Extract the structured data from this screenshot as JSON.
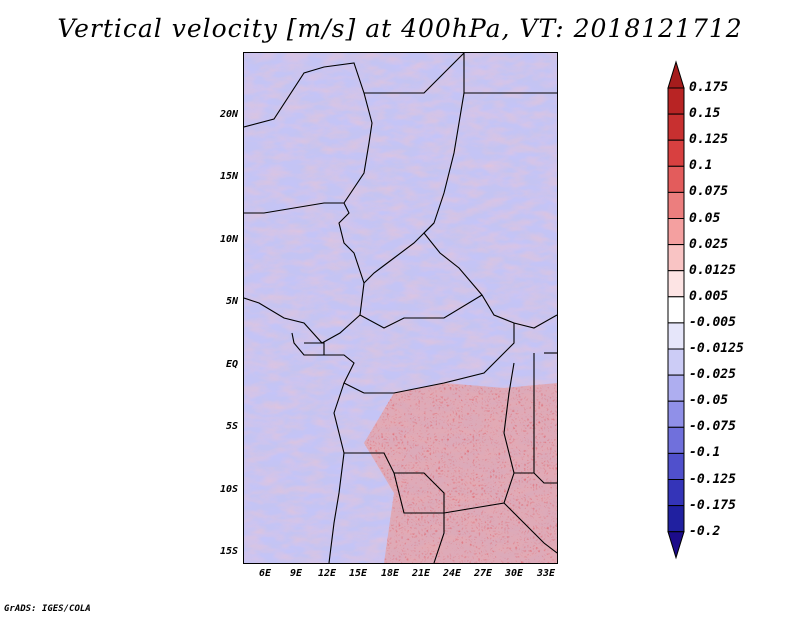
{
  "title": "Vertical velocity [m/s] at 400hPa, VT: 2018121712",
  "map": {
    "lat_labels": [
      "20N",
      "15N",
      "10N",
      "5N",
      "EQ",
      "5S",
      "10S",
      "15S"
    ],
    "lon_labels": [
      "6E",
      "9E",
      "12E",
      "15E",
      "18E",
      "21E",
      "24E",
      "27E",
      "30E",
      "33E"
    ]
  },
  "colorbar": {
    "levels": [
      "0.175",
      "0.15",
      "0.125",
      "0.1",
      "0.075",
      "0.05",
      "0.025",
      "0.0125",
      "0.005",
      "-0.005",
      "-0.0125",
      "-0.025",
      "-0.05",
      "-0.075",
      "-0.1",
      "-0.125",
      "-0.175",
      "-0.2"
    ],
    "colors": [
      "#a51c1c",
      "#b82424",
      "#c83030",
      "#d84040",
      "#e35c5c",
      "#ec7e7e",
      "#f4a0a0",
      "#f9c4c4",
      "#fde4e4",
      "#ffffff",
      "#e6e6fa",
      "#ccccf6",
      "#aeaef0",
      "#9090e8",
      "#7070dc",
      "#5050cc",
      "#3434b8",
      "#2020a0",
      "#1c0c8a"
    ]
  },
  "credit": "GrADS: IGES/COLA"
}
